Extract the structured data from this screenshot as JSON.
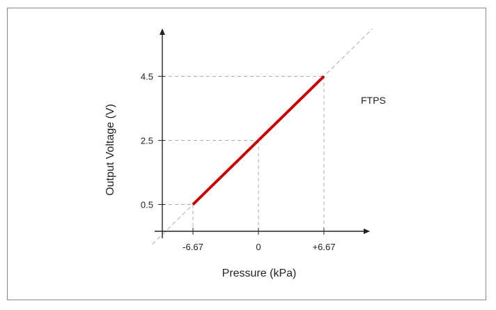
{
  "chart_data": {
    "type": "line",
    "title": "",
    "xlabel": "Pressure (kPa)",
    "ylabel": "Output Voltage (V)",
    "x_ticks": [
      "-6.67",
      "0",
      "+6.67"
    ],
    "y_ticks": [
      "0.5",
      "2.5",
      "4.5"
    ],
    "series": [
      {
        "color": "#cc0000",
        "x": [
          -6.67,
          0,
          6.67
        ],
        "y": [
          0.5,
          2.5,
          4.5
        ]
      }
    ],
    "extrapolation_line": {
      "style": "dashed",
      "color": "#aaaaaa"
    },
    "guide_lines": "dashed",
    "annotation": "FTPS",
    "grid": false
  }
}
